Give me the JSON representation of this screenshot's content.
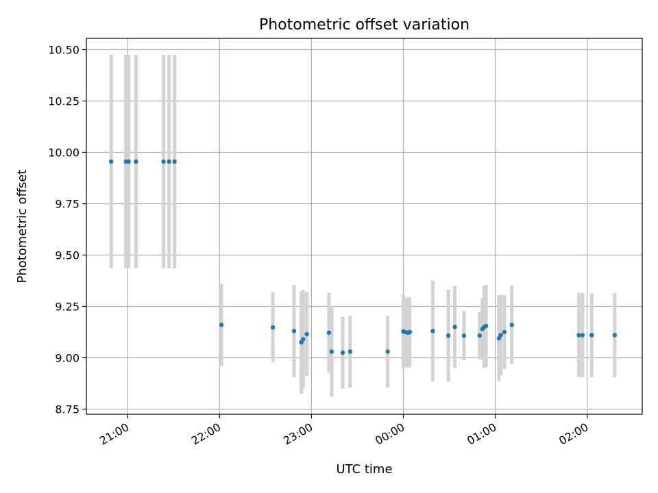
{
  "chart_data": {
    "type": "scatter",
    "title": "Photometric offset variation",
    "xlabel": "UTC time",
    "ylabel": "Photometric offset",
    "x_unit": "hours after 00:00 UTC of the first night",
    "xlim": [
      20.55,
      26.6
    ],
    "ylim": [
      8.725,
      10.555
    ],
    "grid": true,
    "x_ticks": [
      {
        "value": 21,
        "label": "21:00"
      },
      {
        "value": 22,
        "label": "22:00"
      },
      {
        "value": 23,
        "label": "23:00"
      },
      {
        "value": 24,
        "label": "00:00"
      },
      {
        "value": 25,
        "label": "01:00"
      },
      {
        "value": 26,
        "label": "02:00"
      }
    ],
    "y_ticks": [
      {
        "value": 8.75,
        "label": "8.75"
      },
      {
        "value": 9.0,
        "label": "9.00"
      },
      {
        "value": 9.25,
        "label": "9.25"
      },
      {
        "value": 9.5,
        "label": "9.50"
      },
      {
        "value": 9.75,
        "label": "9.75"
      },
      {
        "value": 10.0,
        "label": "10.00"
      },
      {
        "value": 10.25,
        "label": "10.25"
      },
      {
        "value": 10.5,
        "label": "10.50"
      }
    ],
    "point_color": "#1f77b4",
    "errorbar_color": "#d3d3d3",
    "series": [
      {
        "points": [
          {
            "x": 20.82,
            "y": 9.955,
            "err": 0.52
          },
          {
            "x": 20.98,
            "y": 9.955,
            "err": 0.52
          },
          {
            "x": 21.01,
            "y": 9.955,
            "err": 0.52
          },
          {
            "x": 21.09,
            "y": 9.955,
            "err": 0.52
          },
          {
            "x": 21.39,
            "y": 9.955,
            "err": 0.52
          },
          {
            "x": 21.45,
            "y": 9.955,
            "err": 0.52
          },
          {
            "x": 21.51,
            "y": 9.955,
            "err": 0.52
          },
          {
            "x": 22.02,
            "y": 9.16,
            "err": 0.2
          },
          {
            "x": 22.58,
            "y": 9.148,
            "err": 0.17
          },
          {
            "x": 22.81,
            "y": 9.13,
            "err": 0.225
          },
          {
            "x": 22.89,
            "y": 9.075,
            "err": 0.25
          },
          {
            "x": 22.91,
            "y": 9.09,
            "err": 0.24
          },
          {
            "x": 22.95,
            "y": 9.115,
            "err": 0.205
          },
          {
            "x": 23.19,
            "y": 9.122,
            "err": 0.195
          },
          {
            "x": 23.22,
            "y": 9.03,
            "err": 0.22
          },
          {
            "x": 23.34,
            "y": 9.025,
            "err": 0.175
          },
          {
            "x": 23.42,
            "y": 9.03,
            "err": 0.175
          },
          {
            "x": 23.83,
            "y": 9.03,
            "err": 0.175
          },
          {
            "x": 24.0,
            "y": 9.128,
            "err": 0.18
          },
          {
            "x": 24.02,
            "y": 9.125,
            "err": 0.17
          },
          {
            "x": 24.05,
            "y": 9.122,
            "err": 0.17
          },
          {
            "x": 24.07,
            "y": 9.125,
            "err": 0.17
          },
          {
            "x": 24.32,
            "y": 9.13,
            "err": 0.245
          },
          {
            "x": 24.49,
            "y": 9.108,
            "err": 0.225
          },
          {
            "x": 24.56,
            "y": 9.15,
            "err": 0.2
          },
          {
            "x": 24.66,
            "y": 9.108,
            "err": 0.12
          },
          {
            "x": 24.83,
            "y": 9.108,
            "err": 0.115
          },
          {
            "x": 24.86,
            "y": 9.14,
            "err": 0.15
          },
          {
            "x": 24.88,
            "y": 9.15,
            "err": 0.2
          },
          {
            "x": 24.9,
            "y": 9.155,
            "err": 0.2
          },
          {
            "x": 25.04,
            "y": 9.095,
            "err": 0.21
          },
          {
            "x": 25.06,
            "y": 9.11,
            "err": 0.195
          },
          {
            "x": 25.1,
            "y": 9.125,
            "err": 0.18
          },
          {
            "x": 25.18,
            "y": 9.16,
            "err": 0.19
          },
          {
            "x": 25.91,
            "y": 9.11,
            "err": 0.205
          },
          {
            "x": 25.95,
            "y": 9.11,
            "err": 0.205
          },
          {
            "x": 26.05,
            "y": 9.11,
            "err": 0.205
          },
          {
            "x": 26.3,
            "y": 9.11,
            "err": 0.205
          }
        ]
      }
    ]
  }
}
